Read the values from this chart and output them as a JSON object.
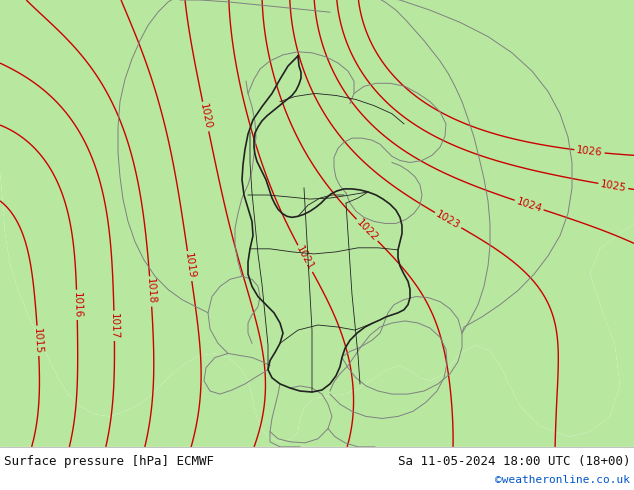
{
  "title_left": "Surface pressure [hPa] ECMWF",
  "title_right": "Sa 11-05-2024 18:00 UTC (18+00)",
  "credit": "©weatheronline.co.uk",
  "bg_grey": "#d8d8d0",
  "green_color": "#b8e8a0",
  "contour_color": "#cc0000",
  "border_color_dark": "#222222",
  "border_color_grey": "#808080",
  "text_color_black": "#101010",
  "text_color_blue": "#0055cc",
  "footer_bg": "#ffffff",
  "figsize": [
    6.34,
    4.9
  ],
  "dpi": 100
}
